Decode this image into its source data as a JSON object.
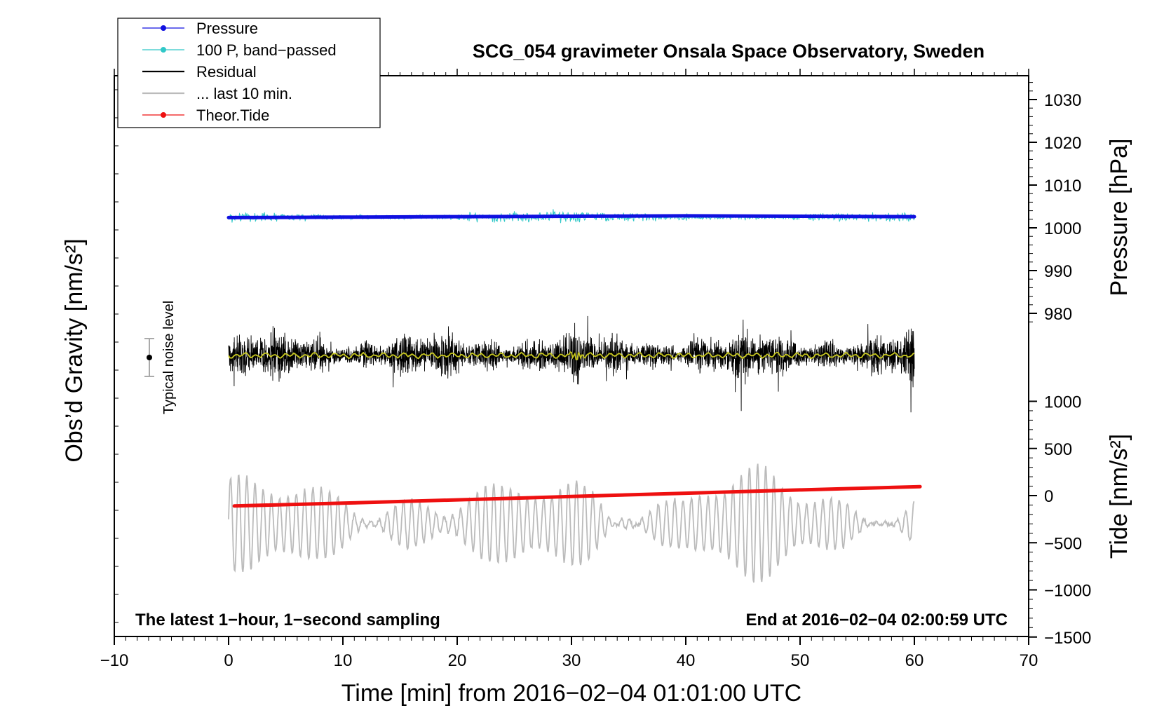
{
  "chart_data": {
    "type": "line",
    "title": "SCG_054 gravimeter Onsala Space Observatory, Sweden",
    "xlabel": "Time [min] from 2016−02−04 01:01:00 UTC",
    "ylabel_left": "Obs’d Gravity [nm/s²]",
    "ylabel_pressure": "Pressure [hPa]",
    "ylabel_tide": "Tide [nm/s²]",
    "xlim": [
      -10,
      70
    ],
    "xticks": [
      -10,
      0,
      10,
      20,
      30,
      40,
      50,
      60,
      70
    ],
    "xtick_labels": [
      "−10",
      "0",
      "10",
      "20",
      "30",
      "40",
      "50",
      "60",
      "70"
    ],
    "pressure_axis": {
      "ticks": [
        1030,
        1020,
        1010,
        1000,
        990,
        980
      ],
      "tick_labels": [
        "1030",
        "1020",
        "1010",
        "1000",
        "990",
        "980"
      ]
    },
    "tide_axis": {
      "ticks": [
        1000,
        500,
        0,
        -500,
        -1000,
        -1500
      ],
      "tick_labels": [
        "1000",
        "500",
        "0",
        "−500",
        "−1000",
        "−1500"
      ]
    },
    "legend": [
      {
        "label": "Pressure",
        "color": "#1010e0",
        "marker": true
      },
      {
        "label": "100 P, band−passed",
        "color": "#30c8c8",
        "marker": true
      },
      {
        "label": "Residual",
        "color": "#000000",
        "marker": false
      },
      {
        "label": "... last 10 min.",
        "color": "#bbbbbb",
        "marker": false
      },
      {
        "label": "Theor.Tide",
        "color": "#ee1010",
        "marker": true
      }
    ],
    "series": [
      {
        "name": "Pressure",
        "units": "hPa",
        "x": [
          0,
          10,
          20,
          30,
          40,
          50,
          60
        ],
        "values": [
          1002.4,
          1002.5,
          1002.6,
          1002.7,
          1002.8,
          1002.7,
          1002.6
        ]
      },
      {
        "name": "Theor.Tide",
        "units": "nm/s²",
        "x": [
          0.5,
          10,
          20,
          30,
          40,
          50,
          60.5
        ],
        "values": [
          -110,
          -80,
          -45,
          -10,
          25,
          60,
          95
        ]
      }
    ],
    "annotations": {
      "bottom_left": "The latest 1−hour, 1−second sampling",
      "bottom_right": "End at 2016−02−04 02:00:59 UTC",
      "noise": "Typical noise level"
    },
    "colors": {
      "pressure": "#1010e0",
      "band_passed": "#30c8c8",
      "residual": "#000000",
      "residual_smooth": "#c8c820",
      "last10": "#bbbbbb",
      "tide": "#ee1010"
    }
  }
}
